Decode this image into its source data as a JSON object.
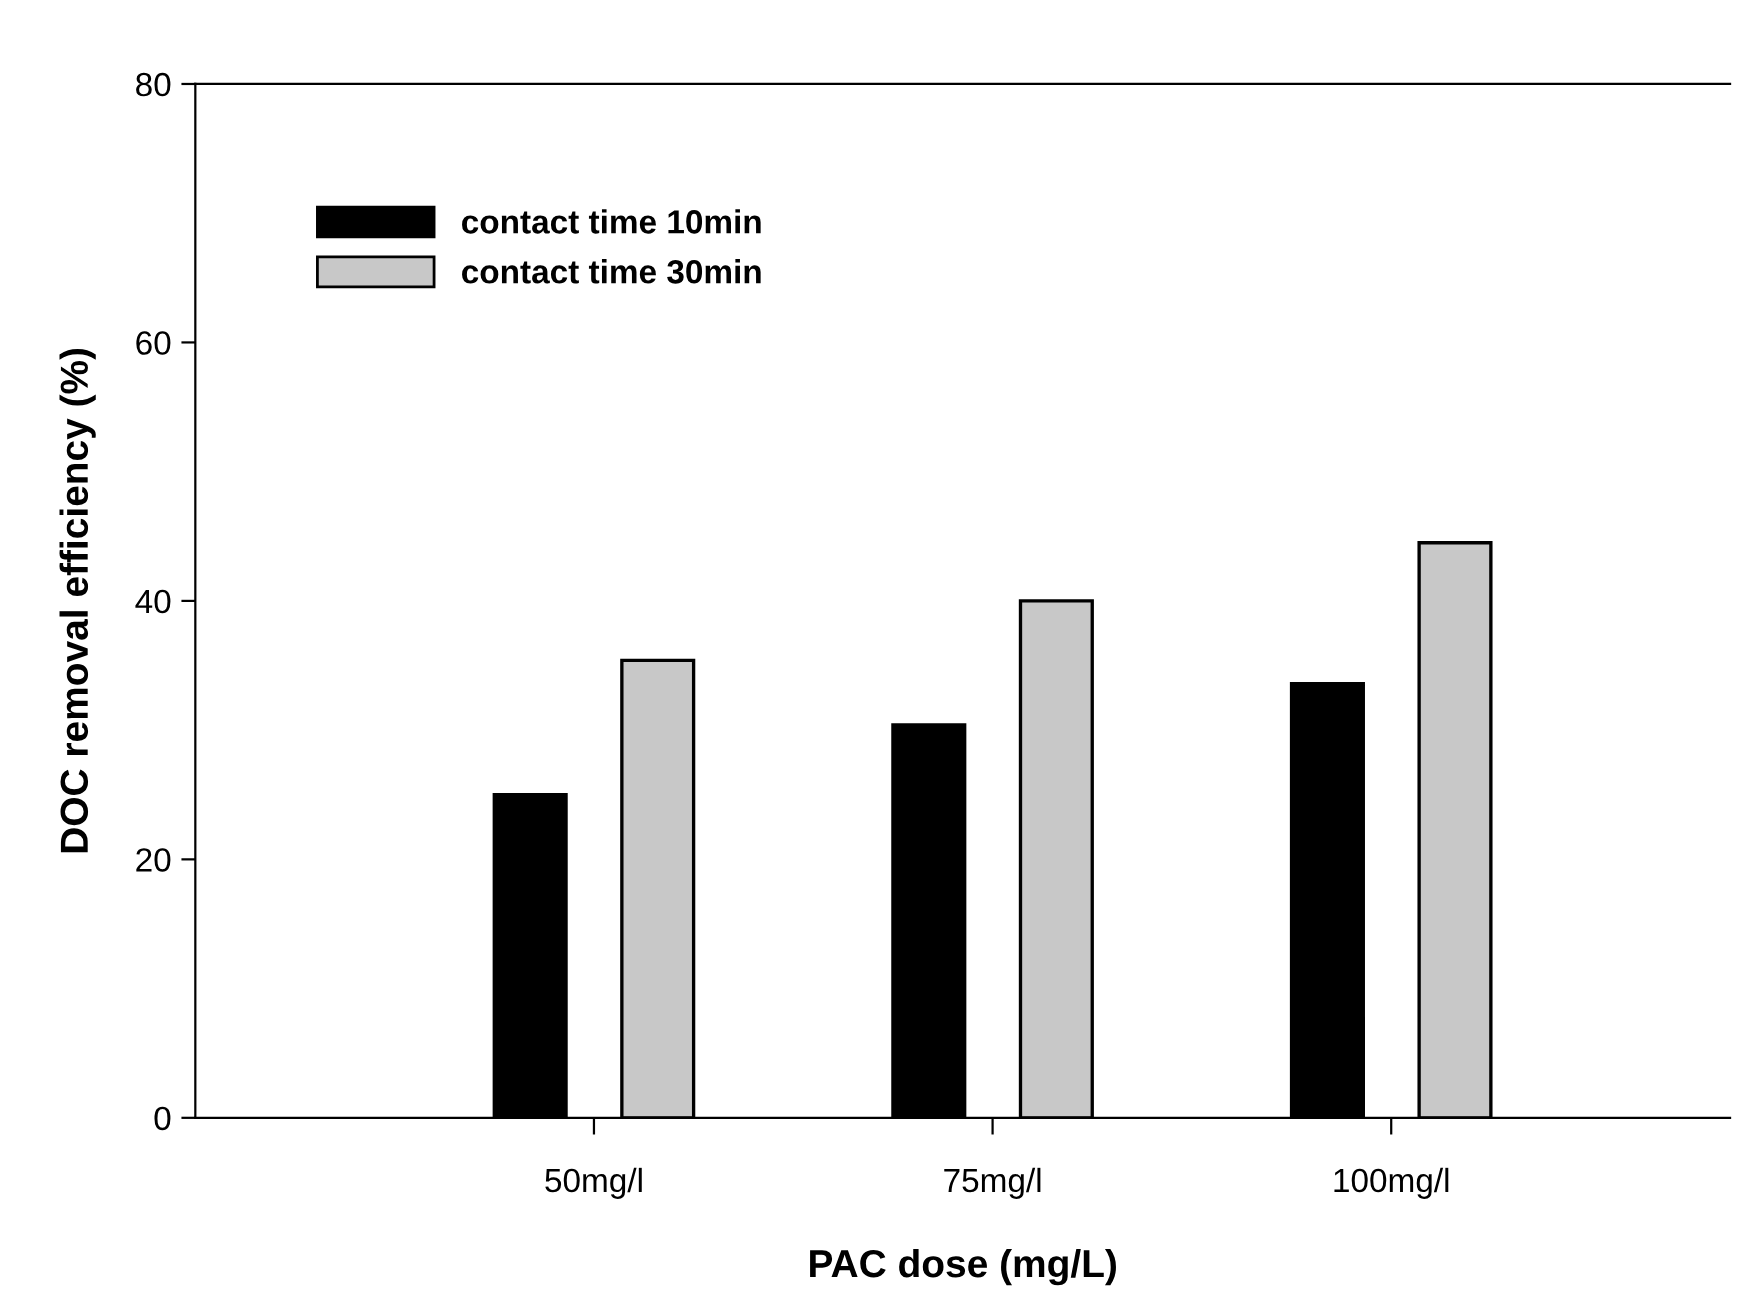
{
  "chart_data": {
    "type": "bar",
    "xlabel": "PAC dose (mg/L)",
    "ylabel": "DOC removal efficiency (%)",
    "categories": [
      "50mg/l",
      "75mg/l",
      "100mg/l"
    ],
    "series": [
      {
        "name": "contact time 10min",
        "color": "#000000",
        "values": [
          25.0,
          30.4,
          33.6
        ]
      },
      {
        "name": "contact time 30min",
        "color": "#c8c8c8",
        "values": [
          35.4,
          40.0,
          44.5
        ]
      }
    ],
    "ylim": [
      0,
      80
    ],
    "yticks": [
      0,
      20,
      40,
      60,
      80
    ],
    "grid": false,
    "legend": "top left"
  }
}
